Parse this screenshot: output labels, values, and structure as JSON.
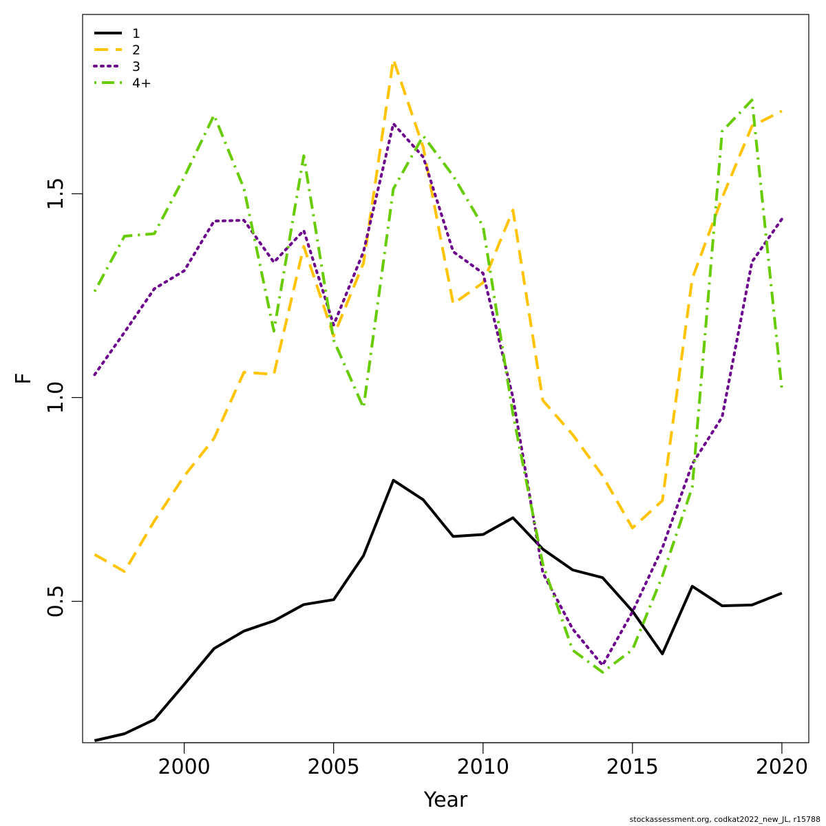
{
  "chart_data": {
    "type": "line",
    "xlabel": "Year",
    "ylabel": "F",
    "xlim": [
      1996.6,
      2020.9
    ],
    "ylim": [
      0.153,
      1.94
    ],
    "xticks": [
      2000,
      2005,
      2010,
      2015,
      2020
    ],
    "yticks": [
      0.5,
      1.0,
      1.5
    ],
    "ytick_labels": [
      "0.5",
      "1.0",
      "1.5"
    ],
    "grid": false,
    "legend_position": "top-left",
    "x": [
      1997,
      1998,
      1999,
      2000,
      2001,
      2002,
      2003,
      2004,
      2005,
      2006,
      2007,
      2008,
      2009,
      2010,
      2011,
      2012,
      2013,
      2014,
      2015,
      2016,
      2017,
      2018,
      2019,
      2020
    ],
    "series": [
      {
        "name": "1",
        "color": "#000000",
        "dash": "solid",
        "values": [
          0.158,
          0.175,
          0.21,
          0.296,
          0.384,
          0.427,
          0.452,
          0.492,
          0.504,
          0.612,
          0.797,
          0.749,
          0.659,
          0.664,
          0.705,
          0.628,
          0.577,
          0.558,
          0.476,
          0.371,
          0.537,
          0.489,
          0.491,
          0.52
        ]
      },
      {
        "name": "2",
        "color": "#FFC300",
        "dash": "dashed",
        "values": [
          0.615,
          0.573,
          0.697,
          0.807,
          0.9,
          1.062,
          1.057,
          1.371,
          1.151,
          1.33,
          1.83,
          1.614,
          1.23,
          1.282,
          1.46,
          0.993,
          0.909,
          0.808,
          0.68,
          0.747,
          1.292,
          1.49,
          1.666,
          1.703
        ]
      },
      {
        "name": "3",
        "color": "#6B008B",
        "dash": "dotted",
        "values": [
          1.056,
          1.16,
          1.267,
          1.311,
          1.433,
          1.435,
          1.332,
          1.41,
          1.178,
          1.358,
          1.672,
          1.59,
          1.358,
          1.305,
          1.0,
          0.57,
          0.432,
          0.343,
          0.474,
          0.631,
          0.837,
          0.952,
          1.333,
          1.438
        ]
      },
      {
        "name": "4+",
        "color": "#66CC00",
        "dash": "dashdot",
        "values": [
          1.26,
          1.396,
          1.402,
          1.541,
          1.693,
          1.513,
          1.163,
          1.593,
          1.141,
          0.975,
          1.512,
          1.642,
          1.544,
          1.42,
          0.96,
          0.591,
          0.38,
          0.326,
          0.381,
          0.562,
          0.78,
          1.653,
          1.73,
          1.02
        ]
      }
    ]
  },
  "footnote": "stockassessment.org, codkat2022_new_JL, r15788"
}
